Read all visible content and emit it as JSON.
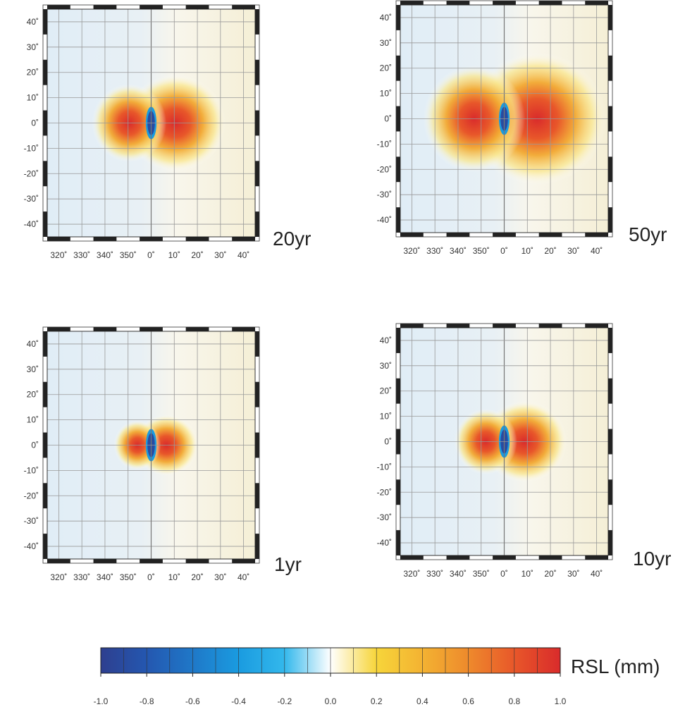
{
  "chart_data": {
    "type": "heatmap",
    "panels": [
      {
        "time_label": "20yr",
        "x_tick_labels": [
          "320˚",
          "330˚",
          "340˚",
          "350˚",
          "0˚",
          "10˚",
          "20˚",
          "30˚",
          "40˚"
        ],
        "y_tick_labels": [
          "40˚",
          "30˚",
          "20˚",
          "10˚",
          "0˚",
          "-10˚",
          "-20˚",
          "-30˚",
          "-40˚"
        ],
        "x_range_deg": [
          -45,
          45
        ],
        "y_range_deg": [
          -45,
          45
        ],
        "peak_rsl_mm": 1.0,
        "min_rsl_mm": -1.0,
        "spread_deg": 19
      },
      {
        "time_label": "50yr",
        "x_tick_labels": [
          "320˚",
          "330˚",
          "340˚",
          "350˚",
          "0˚",
          "10˚",
          "20˚",
          "30˚",
          "40˚"
        ],
        "y_tick_labels": [
          "40˚",
          "30˚",
          "20˚",
          "10˚",
          "0˚",
          "-10˚",
          "-20˚",
          "-30˚",
          "-40˚"
        ],
        "x_range_deg": [
          -45,
          45
        ],
        "y_range_deg": [
          -45,
          45
        ],
        "peak_rsl_mm": 1.0,
        "min_rsl_mm": -1.0,
        "spread_deg": 26
      },
      {
        "time_label": "1yr",
        "x_tick_labels": [
          "320˚",
          "330˚",
          "340˚",
          "350˚",
          "0˚",
          "10˚",
          "20˚",
          "30˚",
          "40˚"
        ],
        "y_tick_labels": [
          "40˚",
          "30˚",
          "20˚",
          "10˚",
          "0˚",
          "-10˚",
          "-20˚",
          "-30˚",
          "-40˚"
        ],
        "x_range_deg": [
          -45,
          45
        ],
        "y_range_deg": [
          -45,
          45
        ],
        "peak_rsl_mm": 1.0,
        "min_rsl_mm": -1.0,
        "spread_deg": 12
      },
      {
        "time_label": "10yr",
        "x_tick_labels": [
          "320˚",
          "330˚",
          "340˚",
          "350˚",
          "0˚",
          "10˚",
          "20˚",
          "30˚",
          "40˚"
        ],
        "y_tick_labels": [
          "40˚",
          "30˚",
          "20˚",
          "10˚",
          "0˚",
          "-10˚",
          "-20˚",
          "-30˚",
          "-40˚"
        ],
        "x_range_deg": [
          -45,
          45
        ],
        "y_range_deg": [
          -45,
          45
        ],
        "peak_rsl_mm": 1.0,
        "min_rsl_mm": -1.0,
        "spread_deg": 16
      }
    ],
    "colorbar": {
      "label": "RSL (mm)",
      "min": -1.0,
      "max": 1.0,
      "tick_labels": [
        "-1.0",
        "-0.8",
        "-0.6",
        "-0.4",
        "-0.2",
        "0.0",
        "0.2",
        "0.4",
        "0.6",
        "0.8",
        "1.0"
      ],
      "colors": [
        "#2e3f8f",
        "#2457b0",
        "#1f78c8",
        "#1a9be0",
        "#33b8ec",
        "#ffffff",
        "#f7d53a",
        "#f3b232",
        "#ee8a2c",
        "#e8572a",
        "#d92b2b"
      ]
    }
  }
}
